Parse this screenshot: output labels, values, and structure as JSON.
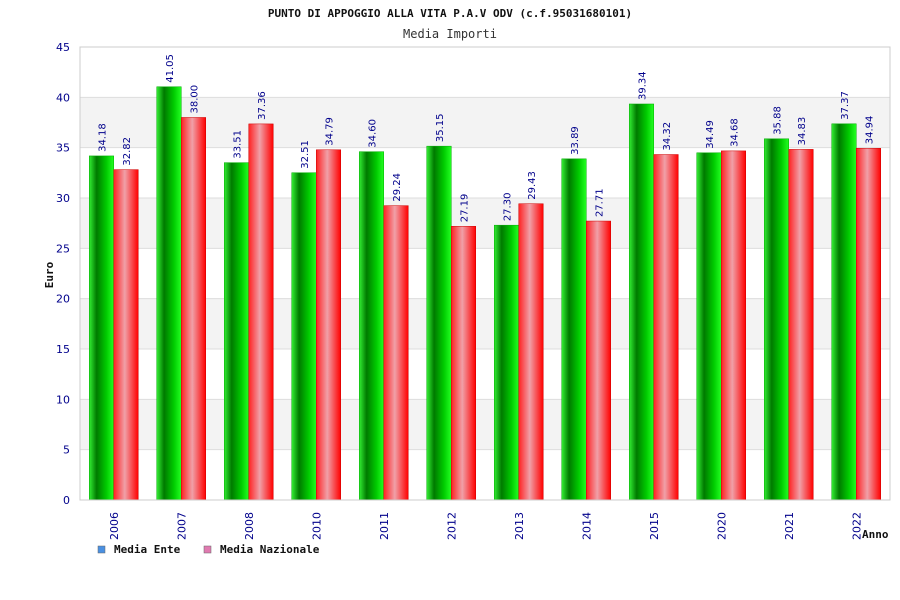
{
  "chart_data": {
    "type": "bar",
    "title": "PUNTO DI APPOGGIO ALLA VITA P.A.V ODV (c.f.95031680101)",
    "subtitle": "Media Importi",
    "xlabel": "Anno",
    "ylabel": "Euro",
    "ylim": [
      0,
      45
    ],
    "yticks": [
      0,
      5,
      10,
      15,
      20,
      25,
      30,
      35,
      40,
      45
    ],
    "grid": true,
    "legend_position": "bottom-left",
    "categories": [
      "2006",
      "2007",
      "2008",
      "2010",
      "2011",
      "2012",
      "2013",
      "2014",
      "2015",
      "2020",
      "2021",
      "2022"
    ],
    "series": [
      {
        "name": "Media Ente",
        "legend_color": "#4a90e2",
        "bar_color": "#00cc00",
        "values": [
          34.18,
          41.05,
          33.51,
          32.51,
          34.6,
          35.15,
          27.3,
          33.89,
          39.34,
          34.49,
          35.88,
          37.37
        ],
        "labels": [
          "34.18",
          "41.05",
          "33.51",
          "32.51",
          "34.60",
          "35.15",
          "27.30",
          "33.89",
          "39.34",
          "34.49",
          "35.88",
          "37.37"
        ]
      },
      {
        "name": "Media Nazionale",
        "legend_color": "#e07ab0",
        "bar_color": "#ff0000",
        "values": [
          32.82,
          38.0,
          37.36,
          34.79,
          29.24,
          27.19,
          29.43,
          27.71,
          34.32,
          34.68,
          34.83,
          34.94
        ],
        "labels": [
          "32.82",
          "38.00",
          "37.36",
          "34.79",
          "29.24",
          "27.19",
          "29.43",
          "27.71",
          "34.32",
          "34.68",
          "34.83",
          "34.94"
        ]
      }
    ]
  }
}
